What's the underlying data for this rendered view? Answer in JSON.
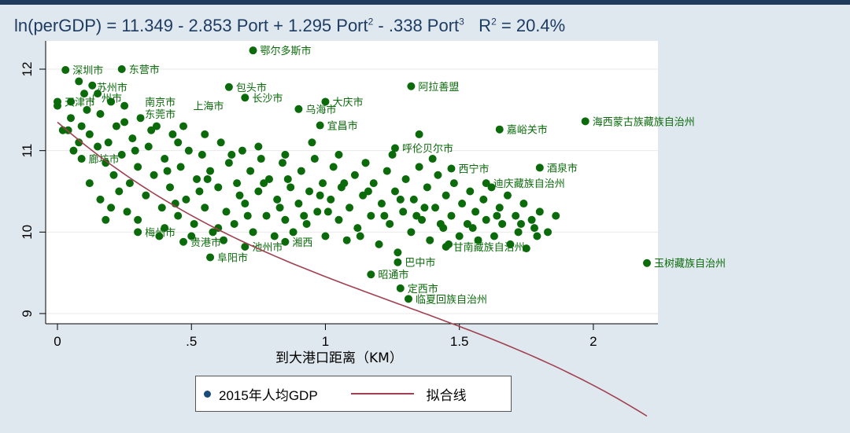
{
  "title": {
    "text_prefix": "ln(perGDP) = 11.349 - 2.853 Port + 1.295 Port",
    "exp2": "2",
    "text_mid": " - .338 Port",
    "exp3": "3",
    "text_r": "   R",
    "r_exp": "2",
    "text_suffix": " = 20.4%"
  },
  "chart_data": {
    "type": "scatter",
    "xlabel": "到大港口距离（KM）",
    "xlim": [
      0,
      2.25
    ],
    "ylim": [
      8.9,
      12.35
    ],
    "xticks": [
      0,
      0.5,
      1,
      1.5,
      2
    ],
    "xtick_labels": [
      "0",
      ".5",
      "1",
      "1.5",
      "2"
    ],
    "yticks": [
      9,
      10,
      11,
      12
    ],
    "ytick_labels": [
      "9",
      "10",
      "11",
      "12"
    ],
    "grid": true,
    "legend_position": "bottom",
    "colors": {
      "points": "#0b6b0b",
      "labels": "#0b6b0b",
      "fit": "#a04050",
      "legend_dot": "#1a4a7a"
    },
    "series": [
      {
        "name": "2015年人均GDP",
        "kind": "scatter"
      },
      {
        "name": "拟合线",
        "kind": "line"
      }
    ],
    "fit_coefficients": {
      "const": 11.349,
      "b1": -2.853,
      "b2": 1.295,
      "b3": -0.338
    },
    "labeled_points": [
      {
        "label": "鄂尔多斯市",
        "x": 0.73,
        "y": 12.23
      },
      {
        "label": "深圳市",
        "x": 0.03,
        "y": 11.99
      },
      {
        "label": "东营市",
        "x": 0.24,
        "y": 12.0
      },
      {
        "label": "阿拉善盟",
        "x": 1.32,
        "y": 11.79
      },
      {
        "label": "包头市",
        "x": 0.64,
        "y": 11.78
      },
      {
        "label": "长沙市",
        "x": 0.7,
        "y": 11.65
      },
      {
        "label": "大庆市",
        "x": 1.0,
        "y": 11.6
      },
      {
        "label": "乌海市",
        "x": 0.9,
        "y": 11.51
      },
      {
        "label": "天津市",
        "x": 0.0,
        "y": 11.6
      },
      {
        "label": "宜昌市",
        "x": 0.98,
        "y": 11.31
      },
      {
        "label": "嘉峪关市",
        "x": 1.65,
        "y": 11.26
      },
      {
        "label": "海西蒙古族藏族自治州",
        "x": 1.97,
        "y": 11.36
      },
      {
        "label": "呼伦贝尔市",
        "x": 1.26,
        "y": 11.03
      },
      {
        "label": "酒泉市",
        "x": 1.8,
        "y": 10.79
      },
      {
        "label": "迪庆藏族自治州",
        "x": 1.6,
        "y": 10.6
      },
      {
        "label": "廊坊市",
        "x": 0.09,
        "y": 10.9
      },
      {
        "label": "梅州市",
        "x": 0.3,
        "y": 10.0
      },
      {
        "label": "阜阳市",
        "x": 0.57,
        "y": 9.69
      },
      {
        "label": "巴中市",
        "x": 1.27,
        "y": 9.63
      },
      {
        "label": "昭通市",
        "x": 1.17,
        "y": 9.48
      },
      {
        "label": "定西市",
        "x": 1.28,
        "y": 9.31
      },
      {
        "label": "临夏回族自治州",
        "x": 1.31,
        "y": 9.18
      },
      {
        "label": "玉树藏族自治州",
        "x": 2.2,
        "y": 9.62
      },
      {
        "label": "甘南藏族自治州",
        "x": 1.45,
        "y": 9.82
      },
      {
        "label": "西宁市",
        "x": 1.47,
        "y": 10.78
      },
      {
        "label": "池州市",
        "x": 0.7,
        "y": 9.82
      },
      {
        "label": "湘西",
        "x": 0.85,
        "y": 9.88
      },
      {
        "label": "贵港市",
        "x": 0.47,
        "y": 9.88
      }
    ],
    "cloud_points": [
      [
        0.0,
        11.55
      ],
      [
        0.02,
        11.25
      ],
      [
        0.05,
        11.4
      ],
      [
        0.06,
        11.0
      ],
      [
        0.08,
        11.85
      ],
      [
        0.09,
        11.3
      ],
      [
        0.1,
        11.7
      ],
      [
        0.12,
        11.2
      ],
      [
        0.13,
        11.8
      ],
      [
        0.15,
        11.05
      ],
      [
        0.16,
        11.45
      ],
      [
        0.18,
        10.85
      ],
      [
        0.2,
        11.6
      ],
      [
        0.21,
        10.7
      ],
      [
        0.22,
        11.3
      ],
      [
        0.24,
        10.95
      ],
      [
        0.25,
        11.55
      ],
      [
        0.27,
        10.6
      ],
      [
        0.28,
        11.15
      ],
      [
        0.3,
        10.8
      ],
      [
        0.31,
        11.4
      ],
      [
        0.33,
        10.45
      ],
      [
        0.34,
        11.05
      ],
      [
        0.36,
        10.7
      ],
      [
        0.37,
        11.3
      ],
      [
        0.39,
        10.3
      ],
      [
        0.4,
        10.9
      ],
      [
        0.42,
        10.55
      ],
      [
        0.43,
        11.2
      ],
      [
        0.45,
        10.2
      ],
      [
        0.46,
        10.8
      ],
      [
        0.48,
        10.4
      ],
      [
        0.49,
        11.0
      ],
      [
        0.51,
        10.1
      ],
      [
        0.52,
        10.65
      ],
      [
        0.54,
        10.95
      ],
      [
        0.55,
        10.3
      ],
      [
        0.57,
        10.75
      ],
      [
        0.58,
        10.0
      ],
      [
        0.6,
        10.55
      ],
      [
        0.61,
        11.1
      ],
      [
        0.63,
        10.25
      ],
      [
        0.64,
        10.85
      ],
      [
        0.66,
        10.1
      ],
      [
        0.67,
        10.6
      ],
      [
        0.69,
        11.0
      ],
      [
        0.7,
        10.35
      ],
      [
        0.72,
        10.75
      ],
      [
        0.73,
        10.0
      ],
      [
        0.75,
        10.5
      ],
      [
        0.76,
        10.9
      ],
      [
        0.78,
        10.2
      ],
      [
        0.79,
        10.65
      ],
      [
        0.81,
        9.95
      ],
      [
        0.82,
        10.4
      ],
      [
        0.84,
        10.85
      ],
      [
        0.85,
        10.15
      ],
      [
        0.87,
        10.55
      ],
      [
        0.88,
        10.0
      ],
      [
        0.9,
        10.35
      ],
      [
        0.91,
        10.75
      ],
      [
        0.93,
        10.1
      ],
      [
        0.94,
        10.5
      ],
      [
        0.96,
        10.9
      ],
      [
        0.97,
        10.25
      ],
      [
        0.99,
        10.6
      ],
      [
        1.0,
        9.95
      ],
      [
        1.02,
        10.4
      ],
      [
        1.03,
        10.8
      ],
      [
        1.05,
        10.15
      ],
      [
        1.06,
        10.55
      ],
      [
        1.08,
        9.9
      ],
      [
        1.09,
        10.3
      ],
      [
        1.11,
        10.7
      ],
      [
        1.12,
        10.05
      ],
      [
        1.14,
        10.45
      ],
      [
        1.15,
        10.85
      ],
      [
        1.17,
        10.2
      ],
      [
        1.18,
        10.6
      ],
      [
        1.2,
        9.85
      ],
      [
        1.21,
        10.35
      ],
      [
        1.23,
        10.75
      ],
      [
        1.24,
        10.1
      ],
      [
        1.26,
        10.5
      ],
      [
        1.27,
        9.75
      ],
      [
        1.29,
        10.25
      ],
      [
        1.3,
        10.65
      ],
      [
        1.32,
        10.0
      ],
      [
        1.33,
        10.4
      ],
      [
        1.35,
        10.8
      ],
      [
        1.36,
        10.15
      ],
      [
        1.38,
        10.55
      ],
      [
        1.39,
        9.9
      ],
      [
        1.41,
        10.3
      ],
      [
        1.42,
        10.7
      ],
      [
        1.44,
        10.05
      ],
      [
        1.45,
        10.45
      ],
      [
        1.47,
        10.2
      ],
      [
        1.48,
        10.6
      ],
      [
        1.5,
        9.95
      ],
      [
        1.51,
        10.35
      ],
      [
        1.53,
        10.1
      ],
      [
        1.54,
        10.5
      ],
      [
        1.56,
        10.25
      ],
      [
        1.57,
        9.9
      ],
      [
        1.59,
        10.4
      ],
      [
        1.6,
        10.15
      ],
      [
        1.62,
        10.55
      ],
      [
        1.63,
        9.95
      ],
      [
        1.65,
        10.3
      ],
      [
        1.66,
        10.1
      ],
      [
        1.68,
        10.45
      ],
      [
        1.69,
        9.85
      ],
      [
        1.71,
        10.2
      ],
      [
        1.72,
        10.0
      ],
      [
        1.74,
        10.35
      ],
      [
        1.75,
        9.8
      ],
      [
        1.77,
        10.15
      ],
      [
        1.79,
        9.95
      ],
      [
        1.8,
        10.25
      ],
      [
        0.05,
        11.6
      ],
      [
        0.15,
        11.7
      ],
      [
        0.25,
        11.35
      ],
      [
        0.35,
        11.25
      ],
      [
        0.45,
        11.1
      ],
      [
        0.55,
        11.2
      ],
      [
        0.65,
        10.95
      ],
      [
        0.75,
        11.05
      ],
      [
        0.85,
        10.95
      ],
      [
        0.95,
        11.1
      ],
      [
        1.05,
        10.95
      ],
      [
        1.15,
        10.85
      ],
      [
        1.25,
        10.95
      ],
      [
        1.35,
        11.2
      ],
      [
        1.4,
        10.9
      ],
      [
        0.2,
        10.3
      ],
      [
        0.3,
        10.15
      ],
      [
        0.4,
        10.05
      ],
      [
        0.5,
        9.95
      ],
      [
        0.6,
        10.05
      ],
      [
        0.18,
        10.15
      ],
      [
        0.23,
        10.5
      ],
      [
        0.12,
        10.6
      ],
      [
        0.08,
        11.1
      ],
      [
        0.16,
        10.4
      ],
      [
        0.26,
        10.25
      ],
      [
        0.38,
        9.95
      ],
      [
        0.44,
        10.35
      ],
      [
        0.53,
        10.5
      ],
      [
        0.62,
        9.9
      ],
      [
        0.71,
        10.2
      ],
      [
        0.83,
        10.3
      ],
      [
        0.92,
        10.2
      ],
      [
        1.01,
        10.25
      ],
      [
        1.13,
        9.95
      ],
      [
        1.22,
        10.2
      ],
      [
        1.34,
        10.2
      ],
      [
        1.46,
        9.85
      ],
      [
        1.55,
        10.05
      ],
      [
        1.64,
        10.2
      ],
      [
        1.73,
        10.1
      ],
      [
        1.78,
        10.05
      ],
      [
        1.83,
        10.0
      ],
      [
        1.86,
        10.2
      ],
      [
        0.04,
        11.25
      ],
      [
        0.11,
        11.5
      ],
      [
        0.19,
        11.1
      ],
      [
        0.29,
        11.0
      ],
      [
        0.41,
        10.75
      ],
      [
        0.47,
        11.3
      ],
      [
        0.56,
        10.65
      ],
      [
        0.68,
        10.45
      ],
      [
        0.77,
        10.6
      ],
      [
        0.86,
        10.65
      ],
      [
        0.98,
        10.45
      ],
      [
        1.07,
        10.6
      ],
      [
        1.16,
        10.5
      ],
      [
        1.28,
        10.4
      ],
      [
        1.37,
        10.3
      ],
      [
        1.43,
        10.1
      ]
    ],
    "label_only": [
      {
        "label": "上海市",
        "x": 0.48,
        "y": 11.55
      },
      {
        "label": "南京市",
        "x": 0.3,
        "y": 11.6
      },
      {
        "label": "苏州市",
        "x": 0.12,
        "y": 11.78
      },
      {
        "label": "广州市",
        "x": 0.1,
        "y": 11.65
      },
      {
        "label": "东莞市",
        "x": 0.3,
        "y": 11.45
      }
    ]
  },
  "legend": {
    "scatter_label": "2015年人均GDP",
    "line_label": "拟合线"
  }
}
